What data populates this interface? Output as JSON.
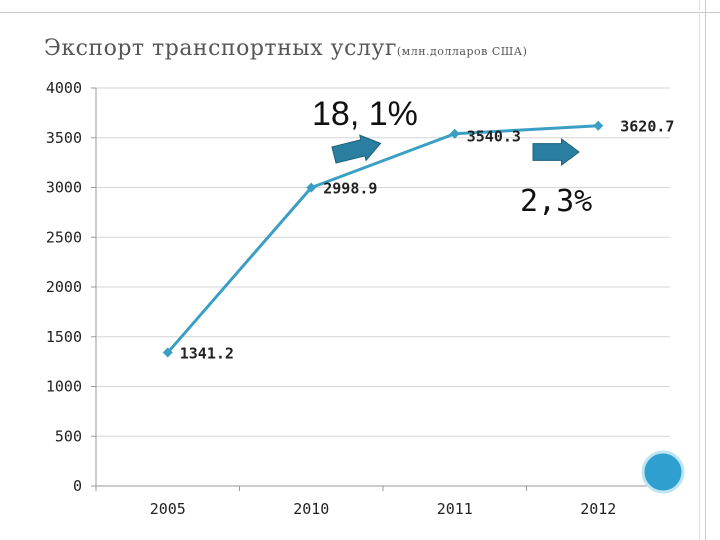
{
  "title": {
    "main": "Экспорт транспортных услуг",
    "sub": "(млн.долларов США)"
  },
  "annotations": {
    "growth_2010_2011": "18, 1%",
    "growth_2011_2012": "2,3%"
  },
  "colors": {
    "line": "#3a9fc4",
    "arrow": "#2a7fa0",
    "circle": "#2e9fcf"
  },
  "chart_data": {
    "type": "line",
    "categories": [
      "2005",
      "2010",
      "2011",
      "2012"
    ],
    "series": [
      {
        "name": "",
        "values": [
          1341.2,
          2998.9,
          3540.3,
          3620.7
        ]
      }
    ],
    "data_labels": [
      "1341.2",
      "2998.9",
      "3540.3",
      "3620.7"
    ],
    "ylim": [
      0,
      4000
    ],
    "yticks": [
      "0",
      "500",
      "1000",
      "1500",
      "2000",
      "2500",
      "3000",
      "3500",
      "4000"
    ],
    "grid": true,
    "xlabel": "",
    "ylabel": ""
  }
}
